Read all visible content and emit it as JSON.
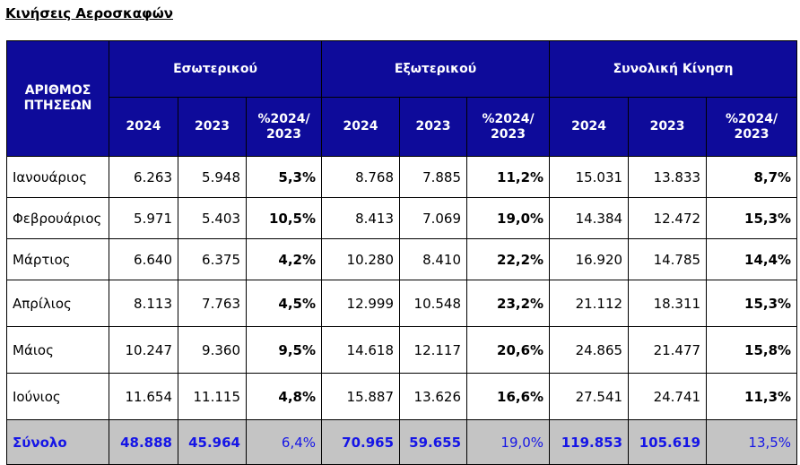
{
  "title": "Κινήσεις Αεροσκαφών",
  "header": {
    "flights_label": "ΑΡΙΘΜΟΣ ΠΤΗΣΕΩΝ",
    "groups": [
      "Εσωτερικού",
      "Εξωτερικού",
      "Συνολική Κίνηση"
    ],
    "sub": [
      "2024",
      "2023",
      "%2024/ 2023"
    ]
  },
  "rows": [
    {
      "month": "Ιανουάριος",
      "d24": "6.263",
      "d23": "5.948",
      "dp": "5,3%",
      "i24": "8.768",
      "i23": "7.885",
      "ip": "11,2%",
      "t24": "15.031",
      "t23": "13.833",
      "tp": "8,7%"
    },
    {
      "month": "Φεβρουάριος",
      "d24": "5.971",
      "d23": "5.403",
      "dp": "10,5%",
      "i24": "8.413",
      "i23": "7.069",
      "ip": "19,0%",
      "t24": "14.384",
      "t23": "12.472",
      "tp": "15,3%"
    },
    {
      "month": "Μάρτιος",
      "d24": "6.640",
      "d23": "6.375",
      "dp": "4,2%",
      "i24": "10.280",
      "i23": "8.410",
      "ip": "22,2%",
      "t24": "16.920",
      "t23": "14.785",
      "tp": "14,4%"
    },
    {
      "month": "Απρίλιος",
      "d24": "8.113",
      "d23": "7.763",
      "dp": "4,5%",
      "i24": "12.999",
      "i23": "10.548",
      "ip": "23,2%",
      "t24": "21.112",
      "t23": "18.311",
      "tp": "15,3%"
    },
    {
      "month": "Μάιος",
      "d24": "10.247",
      "d23": "9.360",
      "dp": "9,5%",
      "i24": "14.618",
      "i23": "12.117",
      "ip": "20,6%",
      "t24": "24.865",
      "t23": "21.477",
      "tp": "15,8%"
    },
    {
      "month": "Ιούνιος",
      "d24": "11.654",
      "d23": "11.115",
      "dp": "4,8%",
      "i24": "15.887",
      "i23": "13.626",
      "ip": "16,6%",
      "t24": "27.541",
      "t23": "24.741",
      "tp": "11,3%"
    }
  ],
  "total": {
    "month": "Σύνολο",
    "d24": "48.888",
    "d23": "45.964",
    "dp": "6,4%",
    "i24": "70.965",
    "i23": "59.655",
    "ip": "19,0%",
    "t24": "119.853",
    "t23": "105.619",
    "tp": "13,5%"
  },
  "colors": {
    "header_bg": "#0e0b9a",
    "header_text": "#ffffff",
    "total_bg": "#c4c4c4",
    "total_text": "#1515e6"
  }
}
